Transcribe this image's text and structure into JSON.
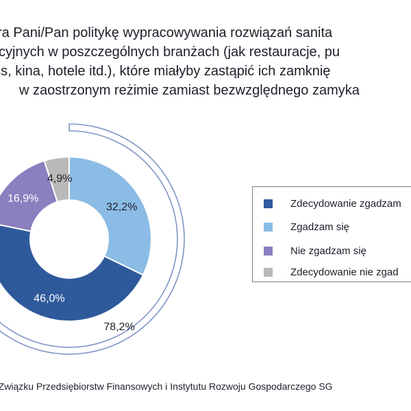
{
  "title_lines": [
    "ra Pani/Pan politykę wypracowywania rozwiązań sanita",
    "cyjnych w poszczególnych branżach (jak restauracje, pu",
    "ess, kina, hotele itd.), które miałyby zastąpić ich zamknię",
    "w zaostrzonym reżimie zamiast bezwzględnego zamyka"
  ],
  "chart_data": {
    "type": "pie",
    "style": "donut",
    "categories": [
      "Zdecydowanie zgadzam",
      "Zgadzam się",
      "Nie zgadzam się",
      "Zdecydowanie nie zgad"
    ],
    "values": [
      46.0,
      32.2,
      16.9,
      4.9
    ],
    "value_labels": [
      "46,0%",
      "32,2%",
      "16,9%",
      "4,9%"
    ],
    "colors": [
      "#2e5a9c",
      "#8bbce5",
      "#8a7fbf",
      "#b9b9b9"
    ],
    "outer_ring": {
      "value": 78.2,
      "label": "78,2%",
      "color": "#7f95c4"
    },
    "legend_position": "right"
  },
  "source": "a Związku Przedsiębiorstw Finansowych i Instytutu Rozwoju Gospodarczego SG"
}
